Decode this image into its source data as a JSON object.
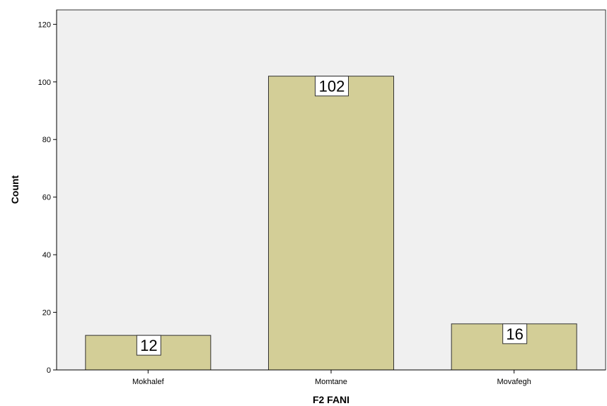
{
  "chart_data": {
    "type": "bar",
    "categories": [
      "Mokhalef",
      "Momtane",
      "Movafegh"
    ],
    "values": [
      12,
      102,
      16
    ],
    "data_labels": [
      "12",
      "102",
      "16"
    ],
    "xlabel": "F2 FANI",
    "ylabel": "Count",
    "ylim": [
      0,
      125
    ],
    "yticks": [
      0,
      20,
      40,
      60,
      80,
      100,
      120
    ],
    "grid": false,
    "colors": {
      "plot_background": "#f0f0f0",
      "bar_fill": "#d3ce97",
      "bar_stroke": "#333333",
      "label_box": "#ffffff"
    }
  }
}
